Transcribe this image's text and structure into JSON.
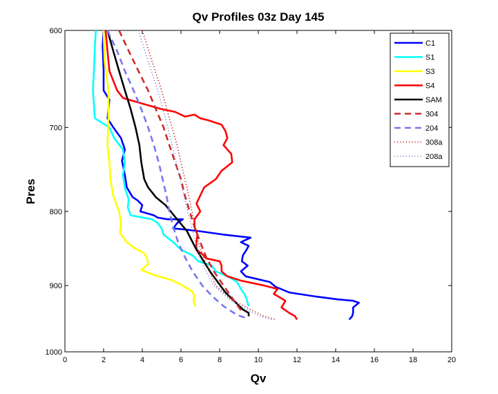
{
  "chart_data": {
    "type": "line",
    "title": "Qv Profiles 03z Day 145",
    "xlabel": "Qv",
    "ylabel": "Pres",
    "xlim": [
      0,
      20
    ],
    "ylim": [
      600,
      1000
    ],
    "y_reversed": true,
    "y_scale": "log",
    "xticks": [
      "0",
      "2",
      "4",
      "6",
      "8",
      "10",
      "12",
      "14",
      "16",
      "18",
      "20"
    ],
    "yticks": [
      "600",
      "700",
      "800",
      "900",
      "1000"
    ],
    "grid": false,
    "legend_position": "top-right",
    "series": [
      {
        "name": "C1",
        "color": "#0000ff",
        "style": "solid",
        "points": [
          [
            2.0,
            600
          ],
          [
            1.95,
            615
          ],
          [
            2.0,
            640
          ],
          [
            2.0,
            660
          ],
          [
            2.3,
            670
          ],
          [
            2.25,
            680
          ],
          [
            2.2,
            690
          ],
          [
            2.5,
            700
          ],
          [
            2.9,
            712
          ],
          [
            3.1,
            725
          ],
          [
            2.95,
            738
          ],
          [
            3.1,
            755
          ],
          [
            3.2,
            770
          ],
          [
            3.5,
            782
          ],
          [
            3.75,
            786
          ],
          [
            4.0,
            792
          ],
          [
            3.9,
            800
          ],
          [
            4.6,
            805
          ],
          [
            4.8,
            808
          ],
          [
            5.3,
            810
          ],
          [
            6.1,
            810
          ],
          [
            5.8,
            815
          ],
          [
            5.6,
            822
          ],
          [
            6.1,
            823
          ],
          [
            6.8,
            825
          ],
          [
            8.2,
            830
          ],
          [
            9.6,
            834
          ],
          [
            9.1,
            840
          ],
          [
            9.5,
            845
          ],
          [
            9.35,
            852
          ],
          [
            9.2,
            858
          ],
          [
            9.15,
            866
          ],
          [
            9.45,
            872
          ],
          [
            9.1,
            880
          ],
          [
            9.35,
            887
          ],
          [
            10.6,
            895
          ],
          [
            10.9,
            902
          ],
          [
            11.6,
            910
          ],
          [
            13.0,
            916
          ],
          [
            14.1,
            920
          ],
          [
            14.9,
            922
          ],
          [
            15.2,
            925
          ],
          [
            14.9,
            932
          ],
          [
            14.9,
            940
          ],
          [
            14.85,
            945
          ],
          [
            14.7,
            950
          ]
        ]
      },
      {
        "name": "S1",
        "color": "#00ffff",
        "style": "solid",
        "points": [
          [
            1.6,
            600
          ],
          [
            1.55,
            615
          ],
          [
            1.5,
            640
          ],
          [
            1.45,
            660
          ],
          [
            1.5,
            675
          ],
          [
            1.55,
            690
          ],
          [
            2.3,
            700
          ],
          [
            2.55,
            712
          ],
          [
            3.0,
            725
          ],
          [
            3.1,
            740
          ],
          [
            3.0,
            755
          ],
          [
            3.1,
            770
          ],
          [
            3.3,
            785
          ],
          [
            3.25,
            795
          ],
          [
            3.4,
            805
          ],
          [
            4.5,
            810
          ],
          [
            4.8,
            815
          ],
          [
            5.0,
            822
          ],
          [
            5.1,
            830
          ],
          [
            5.6,
            840
          ],
          [
            6.0,
            850
          ],
          [
            6.6,
            858
          ],
          [
            6.9,
            866
          ],
          [
            7.6,
            872
          ],
          [
            7.8,
            880
          ],
          [
            8.5,
            888
          ],
          [
            8.9,
            895
          ],
          [
            9.1,
            905
          ],
          [
            9.3,
            913
          ],
          [
            9.4,
            920
          ],
          [
            9.5,
            930
          ]
        ]
      },
      {
        "name": "S3",
        "color": "#ffff00",
        "style": "solid",
        "points": [
          [
            2.0,
            600
          ],
          [
            2.05,
            630
          ],
          [
            2.25,
            660
          ],
          [
            2.25,
            690
          ],
          [
            2.2,
            720
          ],
          [
            2.3,
            740
          ],
          [
            2.35,
            760
          ],
          [
            2.5,
            780
          ],
          [
            2.8,
            800
          ],
          [
            2.9,
            815
          ],
          [
            2.85,
            828
          ],
          [
            3.2,
            840
          ],
          [
            3.6,
            848
          ],
          [
            4.1,
            855
          ],
          [
            4.25,
            862
          ],
          [
            4.3,
            870
          ],
          [
            3.95,
            878
          ],
          [
            4.6,
            885
          ],
          [
            5.5,
            892
          ],
          [
            6.1,
            900
          ],
          [
            6.55,
            908
          ],
          [
            6.7,
            915
          ],
          [
            6.65,
            922
          ],
          [
            6.75,
            930
          ]
        ]
      },
      {
        "name": "S4",
        "color": "#ff0000",
        "style": "solid",
        "points": [
          [
            2.1,
            600
          ],
          [
            2.3,
            640
          ],
          [
            2.7,
            660
          ],
          [
            3.0,
            668
          ],
          [
            4.0,
            674
          ],
          [
            5.0,
            680
          ],
          [
            5.7,
            683
          ],
          [
            6.2,
            688
          ],
          [
            6.7,
            686
          ],
          [
            7.0,
            690
          ],
          [
            7.4,
            692
          ],
          [
            8.1,
            697
          ],
          [
            8.3,
            704
          ],
          [
            8.4,
            712
          ],
          [
            8.2,
            720
          ],
          [
            8.6,
            730
          ],
          [
            8.65,
            740
          ],
          [
            8.1,
            750
          ],
          [
            7.8,
            760
          ],
          [
            7.2,
            770
          ],
          [
            7.0,
            780
          ],
          [
            6.8,
            790
          ],
          [
            7.0,
            800
          ],
          [
            6.7,
            810
          ],
          [
            6.7,
            820
          ],
          [
            6.85,
            830
          ],
          [
            6.8,
            840
          ],
          [
            6.8,
            850
          ],
          [
            7.1,
            856
          ],
          [
            7.3,
            862
          ],
          [
            8.0,
            866
          ],
          [
            8.1,
            872
          ],
          [
            8.1,
            880
          ],
          [
            8.4,
            887
          ],
          [
            9.1,
            893
          ],
          [
            10.3,
            900
          ],
          [
            11.0,
            905
          ],
          [
            10.8,
            912
          ],
          [
            11.4,
            922
          ],
          [
            11.2,
            932
          ],
          [
            11.6,
            940
          ],
          [
            11.9,
            945
          ],
          [
            12.0,
            950
          ]
        ]
      },
      {
        "name": "SAM",
        "color": "#000000",
        "style": "solid",
        "points": [
          [
            2.2,
            600
          ],
          [
            2.5,
            620
          ],
          [
            2.8,
            640
          ],
          [
            3.1,
            660
          ],
          [
            3.4,
            680
          ],
          [
            3.65,
            700
          ],
          [
            3.85,
            720
          ],
          [
            3.95,
            740
          ],
          [
            4.1,
            760
          ],
          [
            4.3,
            770
          ],
          [
            4.7,
            782
          ],
          [
            5.2,
            792
          ],
          [
            5.8,
            810
          ],
          [
            6.3,
            825
          ],
          [
            6.8,
            850
          ],
          [
            7.5,
            880
          ],
          [
            8.3,
            910
          ],
          [
            9.2,
            935
          ],
          [
            9.5,
            940
          ],
          [
            9.5,
            945
          ]
        ]
      },
      {
        "name": "304",
        "color": "#cc2a2a",
        "style": "dashed",
        "points": [
          [
            2.8,
            600
          ],
          [
            3.3,
            620
          ],
          [
            3.8,
            640
          ],
          [
            4.3,
            660
          ],
          [
            4.7,
            680
          ],
          [
            5.1,
            700
          ],
          [
            5.4,
            720
          ],
          [
            5.7,
            740
          ],
          [
            6.0,
            760
          ],
          [
            6.2,
            780
          ],
          [
            6.45,
            800
          ],
          [
            6.7,
            820
          ],
          [
            7.0,
            840
          ],
          [
            7.3,
            860
          ],
          [
            7.7,
            880
          ],
          [
            8.2,
            900
          ],
          [
            8.7,
            920
          ],
          [
            9.2,
            940
          ]
        ]
      },
      {
        "name": "204",
        "color": "#7777ee",
        "style": "dashed",
        "points": [
          [
            2.2,
            600
          ],
          [
            2.7,
            620
          ],
          [
            3.1,
            640
          ],
          [
            3.55,
            660
          ],
          [
            3.95,
            680
          ],
          [
            4.3,
            700
          ],
          [
            4.6,
            720
          ],
          [
            4.85,
            740
          ],
          [
            5.05,
            760
          ],
          [
            5.25,
            780
          ],
          [
            5.4,
            800
          ],
          [
            5.6,
            820
          ],
          [
            5.85,
            840
          ],
          [
            6.2,
            860
          ],
          [
            6.6,
            880
          ],
          [
            7.1,
            900
          ],
          [
            7.6,
            915
          ],
          [
            8.2,
            930
          ],
          [
            8.9,
            943
          ],
          [
            9.4,
            948
          ]
        ]
      },
      {
        "name": "308a",
        "color": "#bb1111",
        "style": "dotted",
        "points": [
          [
            4.0,
            600
          ],
          [
            4.5,
            630
          ],
          [
            5.0,
            660
          ],
          [
            5.4,
            690
          ],
          [
            5.8,
            720
          ],
          [
            6.1,
            750
          ],
          [
            6.4,
            780
          ],
          [
            6.65,
            810
          ],
          [
            6.9,
            840
          ],
          [
            7.3,
            870
          ],
          [
            7.8,
            900
          ],
          [
            8.6,
            920
          ],
          [
            9.6,
            935
          ],
          [
            10.3,
            945
          ],
          [
            10.9,
            950
          ]
        ]
      },
      {
        "name": "208a",
        "color": "#8080e0",
        "style": "dotted",
        "points": [
          [
            3.8,
            600
          ],
          [
            4.3,
            630
          ],
          [
            4.8,
            660
          ],
          [
            5.2,
            690
          ],
          [
            5.55,
            720
          ],
          [
            5.85,
            750
          ],
          [
            6.15,
            780
          ],
          [
            6.45,
            810
          ],
          [
            6.75,
            840
          ],
          [
            7.1,
            870
          ],
          [
            7.7,
            900
          ],
          [
            8.5,
            920
          ],
          [
            9.4,
            935
          ],
          [
            10.1,
            945
          ],
          [
            10.7,
            950
          ]
        ]
      }
    ]
  }
}
